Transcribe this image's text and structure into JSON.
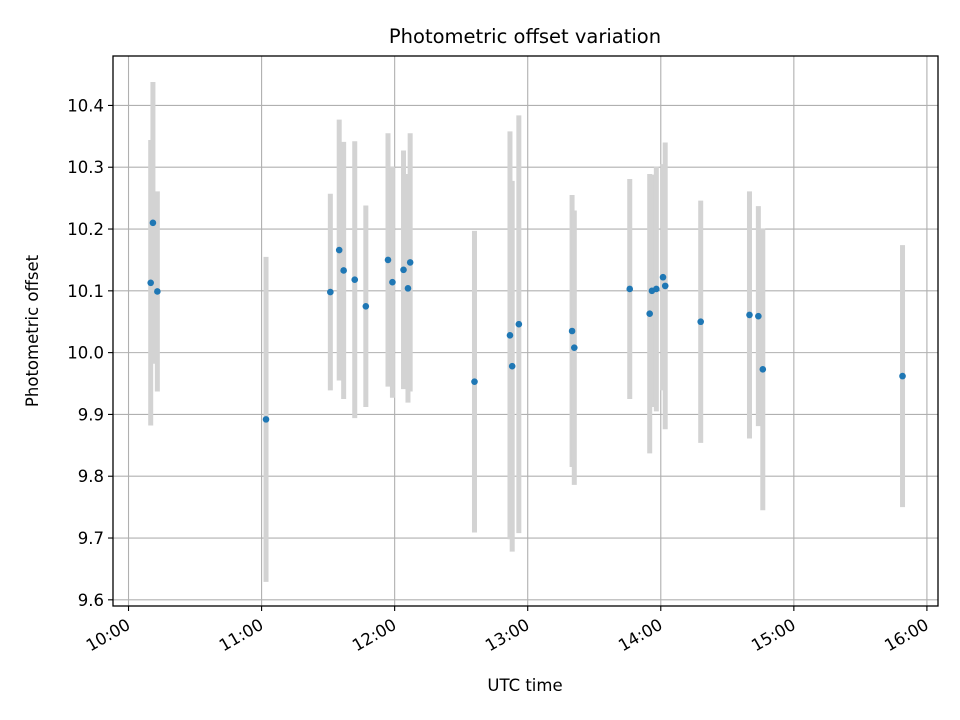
{
  "chart_data": {
    "type": "scatter",
    "title": "Photometric offset variation",
    "xlabel": "UTC time",
    "ylabel": "Photometric offset",
    "x_ticks": [
      "10:00",
      "11:00",
      "12:00",
      "13:00",
      "14:00",
      "15:00",
      "16:00"
    ],
    "x_tick_values": [
      "10:00",
      "11:00",
      "12:00",
      "13:00",
      "14:00",
      "15:00",
      "16:00"
    ],
    "xlim": [
      "09:53",
      "16:05"
    ],
    "y_ticks": [
      "9.6",
      "9.7",
      "9.8",
      "9.9",
      "10.0",
      "10.1",
      "10.2",
      "10.3",
      "10.4"
    ],
    "ylim": [
      9.59,
      10.48
    ],
    "grid": true,
    "marker_color": "#1f77b4",
    "errorbar_color": "#d3d3d3",
    "points": [
      {
        "time": "10:10",
        "y": 10.113,
        "err": 0.231
      },
      {
        "time": "10:11",
        "y": 10.21,
        "err": 0.228
      },
      {
        "time": "10:13",
        "y": 10.099,
        "err": 0.162
      },
      {
        "time": "11:02",
        "y": 9.892,
        "err": 0.263
      },
      {
        "time": "11:31",
        "y": 10.098,
        "err": 0.159
      },
      {
        "time": "11:35",
        "y": 10.166,
        "err": 0.211
      },
      {
        "time": "11:37",
        "y": 10.133,
        "err": 0.208
      },
      {
        "time": "11:42",
        "y": 10.118,
        "err": 0.224
      },
      {
        "time": "11:47",
        "y": 10.075,
        "err": 0.163
      },
      {
        "time": "11:57",
        "y": 10.15,
        "err": 0.205
      },
      {
        "time": "11:59",
        "y": 10.114,
        "err": 0.187
      },
      {
        "time": "12:04",
        "y": 10.134,
        "err": 0.193
      },
      {
        "time": "12:06",
        "y": 10.104,
        "err": 0.185
      },
      {
        "time": "12:07",
        "y": 10.146,
        "err": 0.209
      },
      {
        "time": "12:36",
        "y": 9.953,
        "err": 0.244
      },
      {
        "time": "12:52",
        "y": 10.028,
        "err": 0.33
      },
      {
        "time": "12:53",
        "y": 9.978,
        "err": 0.3
      },
      {
        "time": "12:56",
        "y": 10.046,
        "err": 0.338
      },
      {
        "time": "13:20",
        "y": 10.035,
        "err": 0.22
      },
      {
        "time": "13:21",
        "y": 10.008,
        "err": 0.222
      },
      {
        "time": "13:46",
        "y": 10.103,
        "err": 0.178
      },
      {
        "time": "13:55",
        "y": 10.063,
        "err": 0.226
      },
      {
        "time": "13:56",
        "y": 10.1,
        "err": 0.188
      },
      {
        "time": "13:58",
        "y": 10.103,
        "err": 0.198
      },
      {
        "time": "14:01",
        "y": 10.122,
        "err": 0.183
      },
      {
        "time": "14:02",
        "y": 10.108,
        "err": 0.232
      },
      {
        "time": "14:18",
        "y": 10.05,
        "err": 0.196
      },
      {
        "time": "14:40",
        "y": 10.061,
        "err": 0.2
      },
      {
        "time": "14:44",
        "y": 10.059,
        "err": 0.178
      },
      {
        "time": "14:46",
        "y": 9.973,
        "err": 0.228
      },
      {
        "time": "15:49",
        "y": 9.962,
        "err": 0.212
      }
    ]
  }
}
